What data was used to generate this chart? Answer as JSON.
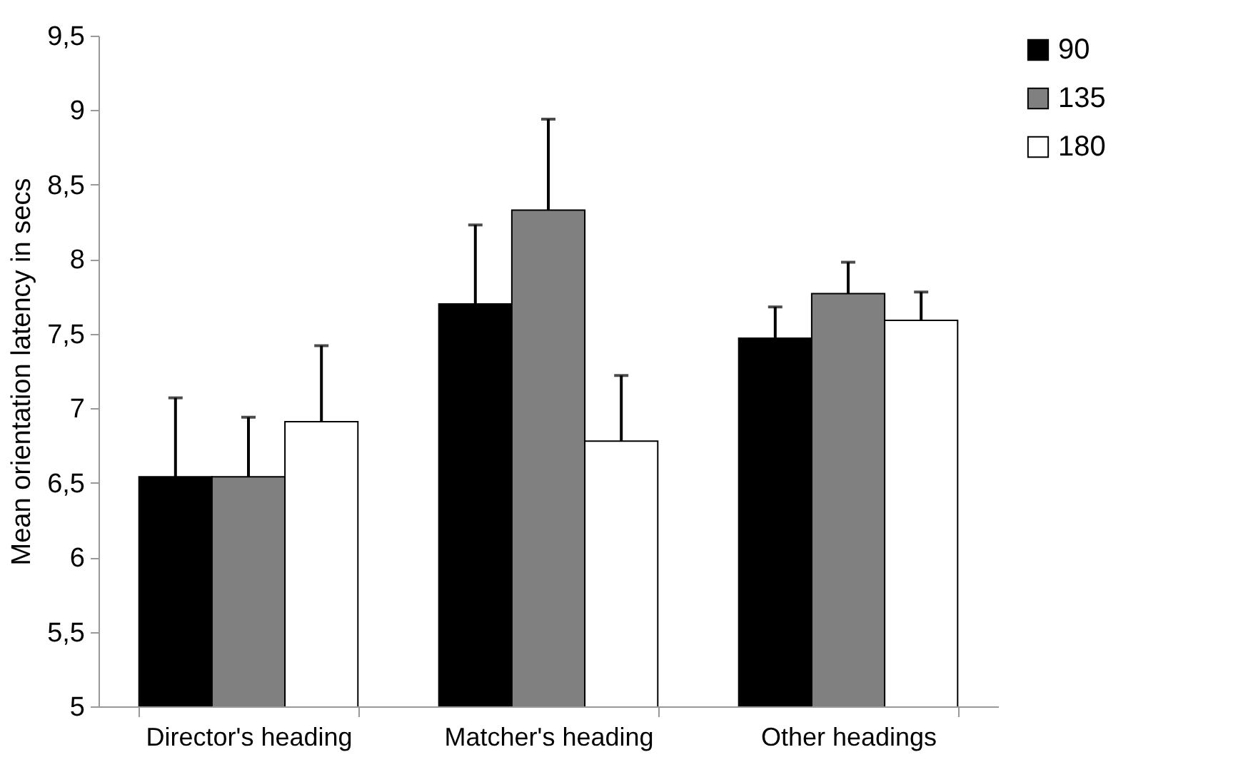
{
  "chart_data": {
    "type": "bar",
    "ylabel": "Mean orientation latency in secs",
    "categories": [
      "Director's heading",
      "Matcher's heading",
      "Other headings"
    ],
    "series": [
      {
        "name": "90",
        "color": "#000000",
        "values": [
          6.54,
          7.7,
          7.47
        ],
        "errors": [
          [
            6.54,
            7.07
          ],
          [
            7.7,
            8.23
          ],
          [
            7.47,
            7.68
          ]
        ]
      },
      {
        "name": "135",
        "color": "#808080",
        "values": [
          6.54,
          8.33,
          7.77
        ],
        "errors": [
          [
            6.54,
            6.94
          ],
          [
            8.33,
            8.94
          ],
          [
            7.77,
            7.98
          ]
        ]
      },
      {
        "name": "180",
        "color": "#ffffff",
        "values": [
          6.91,
          6.78,
          7.59
        ],
        "errors": [
          [
            6.91,
            7.42
          ],
          [
            6.78,
            7.22
          ],
          [
            7.59,
            7.78
          ]
        ]
      }
    ],
    "ylim": [
      5,
      9.5
    ],
    "yticks": [
      5,
      {
        "value": 5.5,
        "label": "5,5"
      },
      6,
      {
        "value": 6.5,
        "label": "6,5"
      },
      7,
      {
        "value": 7.5,
        "label": "7,5"
      },
      8,
      {
        "value": 8.5,
        "label": "8,5"
      },
      9,
      {
        "value": 9.5,
        "label": "9,5"
      }
    ],
    "grid": false,
    "legend": "right"
  }
}
